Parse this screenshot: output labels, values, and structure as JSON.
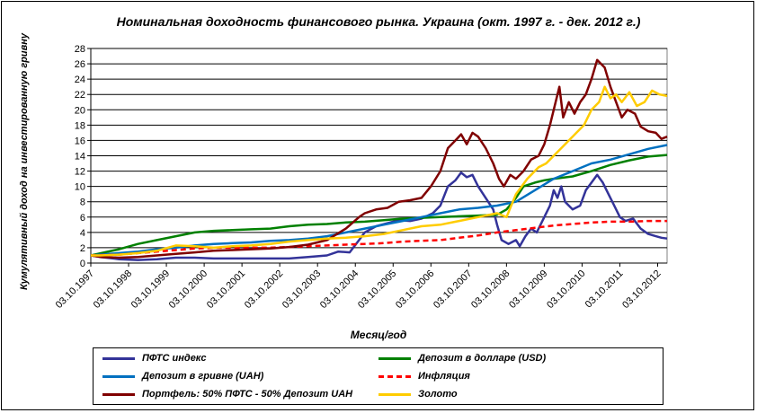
{
  "chart_data": {
    "type": "line",
    "title": "Номинальная доходность финансового рынка. Украина (окт. 1997 г. - дек. 2012 г.)",
    "xlabel": "Месяц/год",
    "ylabel": "Кумулятивный доход на инвестированную гривну",
    "ylim": [
      0,
      28
    ],
    "yticks": [
      0,
      2,
      4,
      6,
      8,
      10,
      12,
      14,
      16,
      18,
      20,
      22,
      24,
      26,
      28
    ],
    "xlim": [
      1997.75,
      2013.0
    ],
    "xticks": [
      {
        "x": 1997.75,
        "label": "03.10.1997"
      },
      {
        "x": 1998.75,
        "label": "03.10.1998"
      },
      {
        "x": 1999.75,
        "label": "03.10.1999"
      },
      {
        "x": 2000.75,
        "label": "03.10.2000"
      },
      {
        "x": 2001.75,
        "label": "03.10.2001"
      },
      {
        "x": 2002.75,
        "label": "03.10.2002"
      },
      {
        "x": 2003.75,
        "label": "03.10.2003"
      },
      {
        "x": 2004.75,
        "label": "03.10.2004"
      },
      {
        "x": 2005.75,
        "label": "03.10.2005"
      },
      {
        "x": 2006.75,
        "label": "03.10.2006"
      },
      {
        "x": 2007.75,
        "label": "03.10.2007"
      },
      {
        "x": 2008.75,
        "label": "03.10.2008"
      },
      {
        "x": 2009.75,
        "label": "03.10.2009"
      },
      {
        "x": 2010.75,
        "label": "03.10.2010"
      },
      {
        "x": 2011.75,
        "label": "03.10.2011"
      },
      {
        "x": 2012.75,
        "label": "03.10.2012"
      }
    ],
    "grid": true,
    "legend_position": "bottom",
    "series": [
      {
        "name": "ПФТС индекс",
        "color": "#333399",
        "dash": false,
        "points": [
          [
            1997.75,
            1.0
          ],
          [
            1998.0,
            0.8
          ],
          [
            1998.5,
            0.5
          ],
          [
            1999.0,
            0.4
          ],
          [
            1999.5,
            0.5
          ],
          [
            2000.0,
            0.7
          ],
          [
            2000.5,
            0.7
          ],
          [
            2001.0,
            0.6
          ],
          [
            2001.5,
            0.6
          ],
          [
            2002.0,
            0.6
          ],
          [
            2002.5,
            0.6
          ],
          [
            2003.0,
            0.6
          ],
          [
            2003.5,
            0.8
          ],
          [
            2004.0,
            1.0
          ],
          [
            2004.3,
            1.5
          ],
          [
            2004.6,
            1.4
          ],
          [
            2004.85,
            3.0
          ],
          [
            2005.0,
            4.0
          ],
          [
            2005.3,
            4.8
          ],
          [
            2005.6,
            5.2
          ],
          [
            2005.9,
            5.6
          ],
          [
            2006.2,
            5.5
          ],
          [
            2006.5,
            5.8
          ],
          [
            2006.8,
            6.5
          ],
          [
            2007.0,
            7.5
          ],
          [
            2007.2,
            10.0
          ],
          [
            2007.4,
            10.8
          ],
          [
            2007.55,
            11.8
          ],
          [
            2007.7,
            11.2
          ],
          [
            2007.85,
            11.5
          ],
          [
            2008.0,
            10.0
          ],
          [
            2008.2,
            8.5
          ],
          [
            2008.4,
            7.0
          ],
          [
            2008.5,
            5.0
          ],
          [
            2008.62,
            3.0
          ],
          [
            2008.8,
            2.5
          ],
          [
            2009.0,
            3.0
          ],
          [
            2009.1,
            2.2
          ],
          [
            2009.25,
            3.5
          ],
          [
            2009.4,
            4.5
          ],
          [
            2009.55,
            4.0
          ],
          [
            2009.75,
            6.0
          ],
          [
            2009.9,
            7.5
          ],
          [
            2010.0,
            9.5
          ],
          [
            2010.1,
            8.5
          ],
          [
            2010.2,
            10.0
          ],
          [
            2010.3,
            8.0
          ],
          [
            2010.5,
            7.0
          ],
          [
            2010.7,
            7.5
          ],
          [
            2010.85,
            9.5
          ],
          [
            2011.0,
            10.5
          ],
          [
            2011.15,
            11.5
          ],
          [
            2011.3,
            10.5
          ],
          [
            2011.45,
            9.0
          ],
          [
            2011.6,
            7.5
          ],
          [
            2011.75,
            6.0
          ],
          [
            2011.9,
            5.5
          ],
          [
            2012.1,
            5.8
          ],
          [
            2012.3,
            4.5
          ],
          [
            2012.5,
            3.8
          ],
          [
            2012.7,
            3.5
          ],
          [
            2012.85,
            3.3
          ],
          [
            2013.0,
            3.2
          ]
        ]
      },
      {
        "name": "Депозит в долларе (USD)",
        "color": "#008000",
        "dash": false,
        "points": [
          [
            1997.75,
            1.0
          ],
          [
            1998.5,
            1.8
          ],
          [
            1999.0,
            2.5
          ],
          [
            1999.5,
            3.0
          ],
          [
            2000.0,
            3.5
          ],
          [
            2000.5,
            4.0
          ],
          [
            2001.0,
            4.2
          ],
          [
            2001.5,
            4.3
          ],
          [
            2002.0,
            4.4
          ],
          [
            2002.5,
            4.5
          ],
          [
            2003.0,
            4.8
          ],
          [
            2003.5,
            5.0
          ],
          [
            2004.0,
            5.1
          ],
          [
            2004.5,
            5.3
          ],
          [
            2005.0,
            5.4
          ],
          [
            2005.5,
            5.6
          ],
          [
            2006.0,
            5.8
          ],
          [
            2006.5,
            5.9
          ],
          [
            2007.0,
            6.0
          ],
          [
            2007.5,
            6.1
          ],
          [
            2008.0,
            6.2
          ],
          [
            2008.5,
            6.3
          ],
          [
            2008.75,
            7.0
          ],
          [
            2009.0,
            8.5
          ],
          [
            2009.2,
            10.0
          ],
          [
            2009.5,
            10.5
          ],
          [
            2009.75,
            10.8
          ],
          [
            2010.0,
            11.0
          ],
          [
            2010.5,
            11.3
          ],
          [
            2011.0,
            12.0
          ],
          [
            2011.5,
            12.8
          ],
          [
            2012.0,
            13.4
          ],
          [
            2012.5,
            13.9
          ],
          [
            2013.0,
            14.1
          ]
        ]
      },
      {
        "name": "Депозит в гривне (UAH)",
        "color": "#0070C0",
        "dash": false,
        "points": [
          [
            1997.75,
            1.0
          ],
          [
            1998.5,
            1.3
          ],
          [
            1999.0,
            1.5
          ],
          [
            1999.5,
            1.8
          ],
          [
            2000.0,
            2.0
          ],
          [
            2000.5,
            2.3
          ],
          [
            2001.0,
            2.5
          ],
          [
            2001.5,
            2.6
          ],
          [
            2002.0,
            2.7
          ],
          [
            2002.5,
            2.9
          ],
          [
            2003.0,
            3.0
          ],
          [
            2003.5,
            3.2
          ],
          [
            2004.0,
            3.5
          ],
          [
            2004.5,
            4.0
          ],
          [
            2005.0,
            4.5
          ],
          [
            2005.5,
            5.0
          ],
          [
            2006.0,
            5.5
          ],
          [
            2006.5,
            6.0
          ],
          [
            2007.0,
            6.5
          ],
          [
            2007.5,
            7.0
          ],
          [
            2008.0,
            7.2
          ],
          [
            2008.5,
            7.5
          ],
          [
            2009.0,
            8.0
          ],
          [
            2009.5,
            9.5
          ],
          [
            2010.0,
            11.0
          ],
          [
            2010.5,
            12.0
          ],
          [
            2011.0,
            13.0
          ],
          [
            2011.5,
            13.5
          ],
          [
            2012.0,
            14.2
          ],
          [
            2012.5,
            14.9
          ],
          [
            2013.0,
            15.4
          ]
        ]
      },
      {
        "name": "Инфляция",
        "color": "#FF0000",
        "dash": true,
        "points": [
          [
            1997.75,
            1.0
          ],
          [
            1998.5,
            1.1
          ],
          [
            1999.0,
            1.3
          ],
          [
            1999.5,
            1.5
          ],
          [
            2000.0,
            1.7
          ],
          [
            2000.5,
            1.9
          ],
          [
            2001.0,
            2.0
          ],
          [
            2001.5,
            2.0
          ],
          [
            2002.0,
            2.0
          ],
          [
            2002.5,
            2.0
          ],
          [
            2003.0,
            2.1
          ],
          [
            2003.5,
            2.2
          ],
          [
            2004.0,
            2.3
          ],
          [
            2004.5,
            2.4
          ],
          [
            2005.0,
            2.5
          ],
          [
            2005.5,
            2.6
          ],
          [
            2006.0,
            2.8
          ],
          [
            2006.5,
            2.9
          ],
          [
            2007.0,
            3.0
          ],
          [
            2007.5,
            3.3
          ],
          [
            2008.0,
            3.6
          ],
          [
            2008.5,
            4.0
          ],
          [
            2009.0,
            4.3
          ],
          [
            2009.5,
            4.6
          ],
          [
            2010.0,
            4.9
          ],
          [
            2010.5,
            5.1
          ],
          [
            2011.0,
            5.3
          ],
          [
            2011.5,
            5.4
          ],
          [
            2012.0,
            5.4
          ],
          [
            2012.5,
            5.5
          ],
          [
            2013.0,
            5.5
          ]
        ]
      },
      {
        "name": "Портфель: 50% ПФТС - 50% Депозит UAH",
        "color": "#800000",
        "dash": false,
        "points": [
          [
            1997.75,
            1.0
          ],
          [
            1998.0,
            0.8
          ],
          [
            1998.5,
            0.7
          ],
          [
            1999.0,
            0.8
          ],
          [
            1999.5,
            1.0
          ],
          [
            2000.0,
            1.2
          ],
          [
            2000.5,
            1.4
          ],
          [
            2001.0,
            1.6
          ],
          [
            2001.5,
            1.7
          ],
          [
            2002.0,
            1.8
          ],
          [
            2002.5,
            1.9
          ],
          [
            2003.0,
            2.1
          ],
          [
            2003.5,
            2.4
          ],
          [
            2004.0,
            3.0
          ],
          [
            2004.5,
            4.5
          ],
          [
            2004.85,
            6.0
          ],
          [
            2005.0,
            6.5
          ],
          [
            2005.3,
            7.0
          ],
          [
            2005.6,
            7.2
          ],
          [
            2005.9,
            8.0
          ],
          [
            2006.2,
            8.2
          ],
          [
            2006.5,
            8.5
          ],
          [
            2006.75,
            10.0
          ],
          [
            2007.0,
            12.0
          ],
          [
            2007.2,
            15.0
          ],
          [
            2007.4,
            16.0
          ],
          [
            2007.55,
            16.8
          ],
          [
            2007.7,
            15.5
          ],
          [
            2007.85,
            17.0
          ],
          [
            2008.0,
            16.5
          ],
          [
            2008.2,
            15.0
          ],
          [
            2008.4,
            13.0
          ],
          [
            2008.55,
            11.0
          ],
          [
            2008.68,
            10.0
          ],
          [
            2008.85,
            11.5
          ],
          [
            2009.0,
            11.0
          ],
          [
            2009.2,
            12.0
          ],
          [
            2009.4,
            13.5
          ],
          [
            2009.6,
            14.0
          ],
          [
            2009.75,
            15.5
          ],
          [
            2009.9,
            18.0
          ],
          [
            2010.0,
            20.0
          ],
          [
            2010.15,
            23.0
          ],
          [
            2010.25,
            19.0
          ],
          [
            2010.4,
            21.0
          ],
          [
            2010.55,
            19.5
          ],
          [
            2010.7,
            21.0
          ],
          [
            2010.85,
            22.0
          ],
          [
            2011.0,
            24.0
          ],
          [
            2011.15,
            26.5
          ],
          [
            2011.35,
            25.5
          ],
          [
            2011.5,
            23.0
          ],
          [
            2011.65,
            21.0
          ],
          [
            2011.8,
            19.0
          ],
          [
            2011.95,
            20.0
          ],
          [
            2012.15,
            19.5
          ],
          [
            2012.3,
            17.8
          ],
          [
            2012.5,
            17.2
          ],
          [
            2012.7,
            17.0
          ],
          [
            2012.85,
            16.2
          ],
          [
            2013.0,
            16.5
          ]
        ]
      },
      {
        "name": "Золото",
        "color": "#FFCC00",
        "dash": false,
        "points": [
          [
            1997.75,
            1.0
          ],
          [
            1998.0,
            1.0
          ],
          [
            1998.5,
            1.1
          ],
          [
            1999.0,
            1.3
          ],
          [
            1999.5,
            1.6
          ],
          [
            2000.0,
            2.3
          ],
          [
            2000.5,
            2.2
          ],
          [
            2001.0,
            2.0
          ],
          [
            2001.5,
            2.2
          ],
          [
            2002.0,
            2.3
          ],
          [
            2002.5,
            2.5
          ],
          [
            2003.0,
            2.8
          ],
          [
            2003.5,
            3.0
          ],
          [
            2004.0,
            3.2
          ],
          [
            2004.5,
            3.3
          ],
          [
            2005.0,
            3.5
          ],
          [
            2005.5,
            3.8
          ],
          [
            2006.0,
            4.3
          ],
          [
            2006.5,
            4.8
          ],
          [
            2007.0,
            5.0
          ],
          [
            2007.5,
            5.5
          ],
          [
            2008.0,
            6.0
          ],
          [
            2008.5,
            6.5
          ],
          [
            2008.75,
            6.0
          ],
          [
            2009.0,
            9.0
          ],
          [
            2009.3,
            11.0
          ],
          [
            2009.6,
            12.5
          ],
          [
            2009.8,
            13.0
          ],
          [
            2010.0,
            14.0
          ],
          [
            2010.3,
            15.5
          ],
          [
            2010.6,
            17.0
          ],
          [
            2010.8,
            18.0
          ],
          [
            2011.0,
            20.0
          ],
          [
            2011.2,
            21.0
          ],
          [
            2011.35,
            23.0
          ],
          [
            2011.5,
            21.5
          ],
          [
            2011.65,
            22.0
          ],
          [
            2011.8,
            21.0
          ],
          [
            2012.0,
            22.3
          ],
          [
            2012.2,
            20.5
          ],
          [
            2012.4,
            21.0
          ],
          [
            2012.6,
            22.5
          ],
          [
            2012.8,
            22.0
          ],
          [
            2013.0,
            21.8
          ]
        ]
      }
    ]
  }
}
